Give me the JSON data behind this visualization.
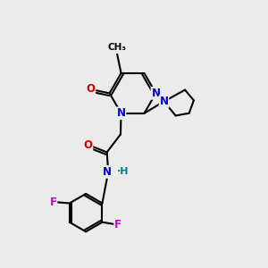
{
  "background_color": "#ebebeb",
  "atom_colors": {
    "N": "#0000cc",
    "O": "#cc0000",
    "F": "#cc00cc",
    "C": "#000000",
    "H": "#008080"
  },
  "figsize": [
    3.0,
    3.0
  ],
  "dpi": 100
}
